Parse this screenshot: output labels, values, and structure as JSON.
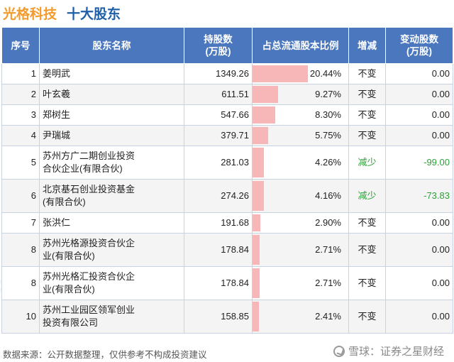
{
  "header": {
    "company": "光格科技",
    "subtitle": "十大股东"
  },
  "table": {
    "columns": {
      "seq": "序号",
      "name": "股东名称",
      "shares_l1": "持股数",
      "shares_l2": "(万股)",
      "ratio": "占总流通股本比例",
      "change": "增减",
      "delta_l1": "变动股数",
      "delta_l2": "(万股)"
    },
    "rows": [
      {
        "seq": "1",
        "name": "姜明武",
        "shares": "1349.26",
        "ratio": "20.44%",
        "ratio_value": 20.44,
        "change": "不变",
        "delta": "0.00"
      },
      {
        "seq": "2",
        "name": "叶玄羲",
        "shares": "611.51",
        "ratio": "9.27%",
        "ratio_value": 9.27,
        "change": "不变",
        "delta": "0.00"
      },
      {
        "seq": "3",
        "name": "郑树生",
        "shares": "547.66",
        "ratio": "8.30%",
        "ratio_value": 8.3,
        "change": "不变",
        "delta": "0.00"
      },
      {
        "seq": "4",
        "name": "尹瑞城",
        "shares": "379.71",
        "ratio": "5.75%",
        "ratio_value": 5.75,
        "change": "不变",
        "delta": "0.00"
      },
      {
        "seq": "5",
        "name_l1": "苏州方广二期创业投资",
        "name_l2": "合伙企业(有限合伙)",
        "shares": "281.03",
        "ratio": "4.26%",
        "ratio_value": 4.26,
        "change": "减少",
        "delta": "-99.00"
      },
      {
        "seq": "6",
        "name_l1": "北京基石创业投资基金",
        "name_l2": "(有限合伙)",
        "shares": "274.26",
        "ratio": "4.16%",
        "ratio_value": 4.16,
        "change": "减少",
        "delta": "-73.83"
      },
      {
        "seq": "7",
        "name": "张洪仁",
        "shares": "191.68",
        "ratio": "2.90%",
        "ratio_value": 2.9,
        "change": "不变",
        "delta": "0.00"
      },
      {
        "seq": "8",
        "name_l1": "苏州光格源投资合伙企",
        "name_l2": "业(有限合伙)",
        "shares": "178.84",
        "ratio": "2.71%",
        "ratio_value": 2.71,
        "change": "不变",
        "delta": "0.00"
      },
      {
        "seq": "8",
        "name_l1": "苏州光格汇投资合伙企",
        "name_l2": "业(有限合伙)",
        "shares": "178.84",
        "ratio": "2.71%",
        "ratio_value": 2.71,
        "change": "不变",
        "delta": "0.00"
      },
      {
        "seq": "10",
        "name_l1": "苏州工业园区领军创业",
        "name_l2": "投资有限公司",
        "shares": "158.85",
        "ratio": "2.41%",
        "ratio_value": 2.41,
        "change": "不变",
        "delta": "0.00"
      }
    ]
  },
  "footer": {
    "source": "数据来源：公开数据整理，仅供参考不构成投资建议",
    "brand": "雪球：证券之星财经"
  },
  "colors": {
    "title_orange": "#f29b2e",
    "title_blue": "#1f5fa8",
    "header_bg": "#4a77be",
    "bar": "#f7b7b9",
    "decrease": "#2f9e3a"
  }
}
